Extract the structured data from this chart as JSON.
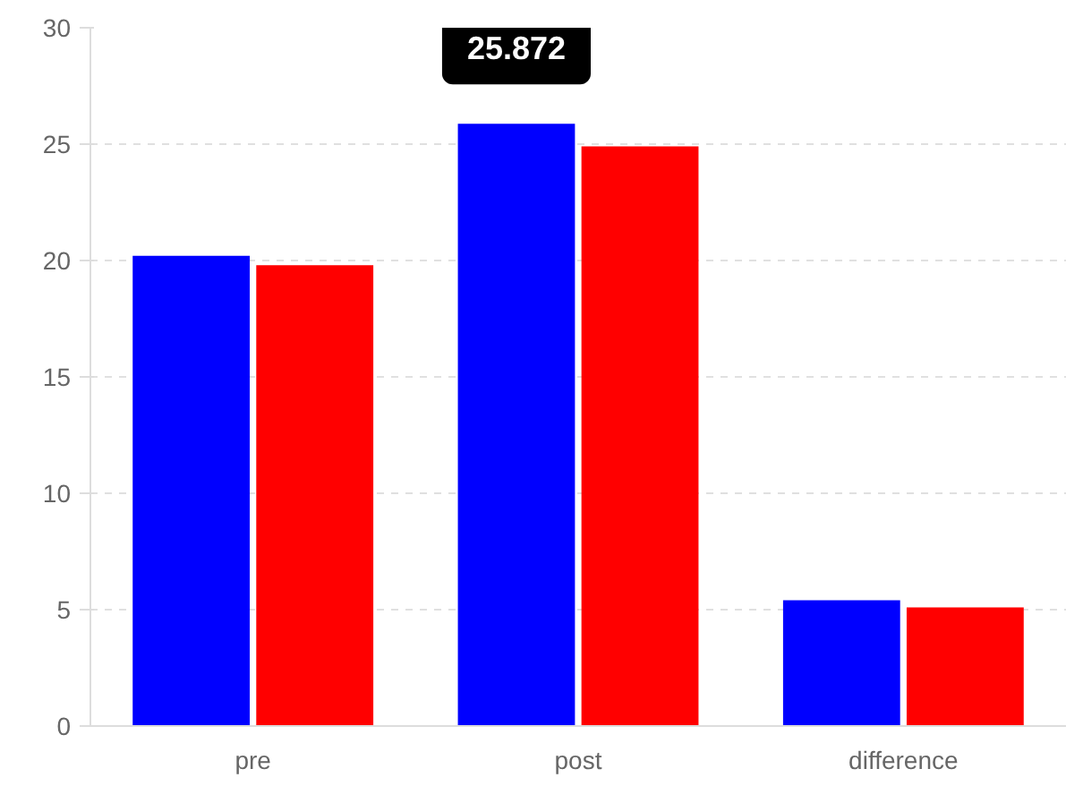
{
  "chart_data": {
    "type": "bar",
    "categories": [
      "pre",
      "post",
      "difference"
    ],
    "series": [
      {
        "color": "#0000ff",
        "values": [
          20.2,
          25.872,
          5.4
        ]
      },
      {
        "color": "#ff0000",
        "values": [
          19.8,
          24.9,
          5.1
        ]
      }
    ],
    "ylim": [
      0,
      30
    ],
    "yticks": [
      0,
      5,
      10,
      15,
      20,
      25,
      30
    ],
    "grid": "y",
    "annotations": [
      {
        "text": "25.872",
        "x": "post",
        "y": 25.872
      }
    ]
  }
}
